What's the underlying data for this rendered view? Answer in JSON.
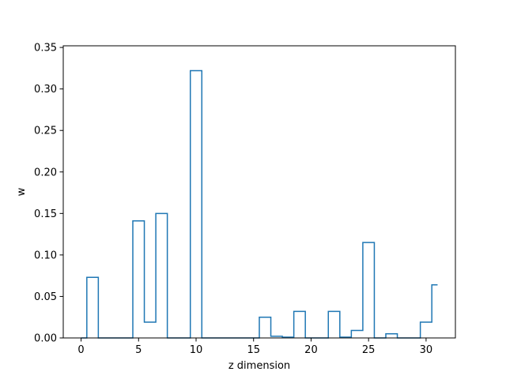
{
  "chart_data": {
    "type": "line",
    "drawstyle": "steps-mid",
    "title": "",
    "xlabel": "z dimension",
    "ylabel": "w",
    "xlim": [
      -1.55,
      32.55
    ],
    "ylim": [
      0,
      0.352
    ],
    "x_ticks": [
      0,
      5,
      10,
      15,
      20,
      25,
      30
    ],
    "x_tick_labels": [
      "0",
      "5",
      "10",
      "15",
      "20",
      "25",
      "30"
    ],
    "y_ticks": [
      0,
      0.05,
      0.1,
      0.15,
      0.2,
      0.25,
      0.3,
      0.35
    ],
    "y_tick_labels": [
      "0.00",
      "0.05",
      "0.10",
      "0.15",
      "0.20",
      "0.25",
      "0.30",
      "0.35"
    ],
    "grid": false,
    "series": [
      {
        "color": "#1f77b4",
        "x": [
          0,
          1,
          2,
          3,
          4,
          5,
          6,
          7,
          8,
          9,
          10,
          11,
          12,
          13,
          14,
          15,
          16,
          17,
          18,
          19,
          20,
          21,
          22,
          23,
          24,
          25,
          26,
          27,
          28,
          29,
          30,
          31
        ],
        "y": [
          0.0,
          0.073,
          0.0,
          0.0,
          0.0,
          0.141,
          0.019,
          0.15,
          0.0,
          0.0,
          0.322,
          0.0,
          0.0,
          0.0,
          0.0,
          0.0,
          0.025,
          0.002,
          0.001,
          0.032,
          0.0,
          0.0,
          0.032,
          0.001,
          0.009,
          0.115,
          0.0,
          0.005,
          0.0,
          0.0,
          0.019,
          0.064
        ]
      }
    ]
  }
}
